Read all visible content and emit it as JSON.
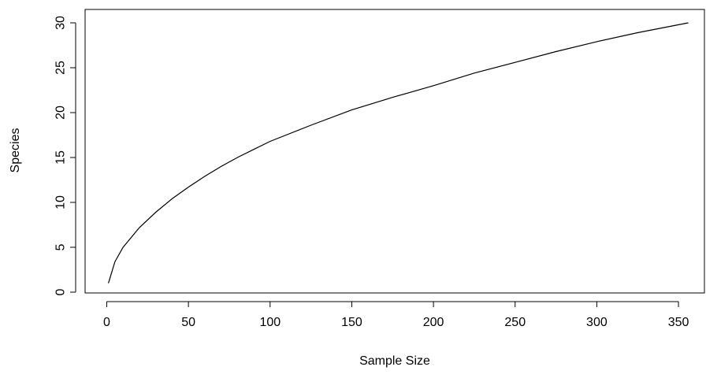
{
  "chart_data": {
    "type": "line",
    "title": "",
    "xlabel": "Sample Size",
    "ylabel": "Species",
    "xlim": [
      1,
      356
    ],
    "ylim": [
      0,
      30
    ],
    "x_ticks": [
      "0",
      "50",
      "100",
      "150",
      "200",
      "250",
      "300",
      "350"
    ],
    "y_ticks": [
      "0",
      "5",
      "10",
      "15",
      "20",
      "25",
      "30"
    ],
    "grid": false,
    "legend": "none",
    "line_color": "#000000",
    "series": [
      {
        "x": [
          1,
          5,
          10,
          20,
          30,
          40,
          50,
          60,
          70,
          80,
          90,
          100,
          125,
          150,
          175,
          200,
          225,
          250,
          275,
          300,
          325,
          356
        ],
        "values": [
          1.0,
          3.4,
          5.0,
          7.2,
          8.9,
          10.4,
          11.7,
          12.9,
          14.0,
          15.0,
          15.9,
          16.8,
          18.6,
          20.3,
          21.7,
          23.0,
          24.4,
          25.6,
          26.8,
          27.9,
          28.9,
          30.0
        ]
      }
    ]
  }
}
